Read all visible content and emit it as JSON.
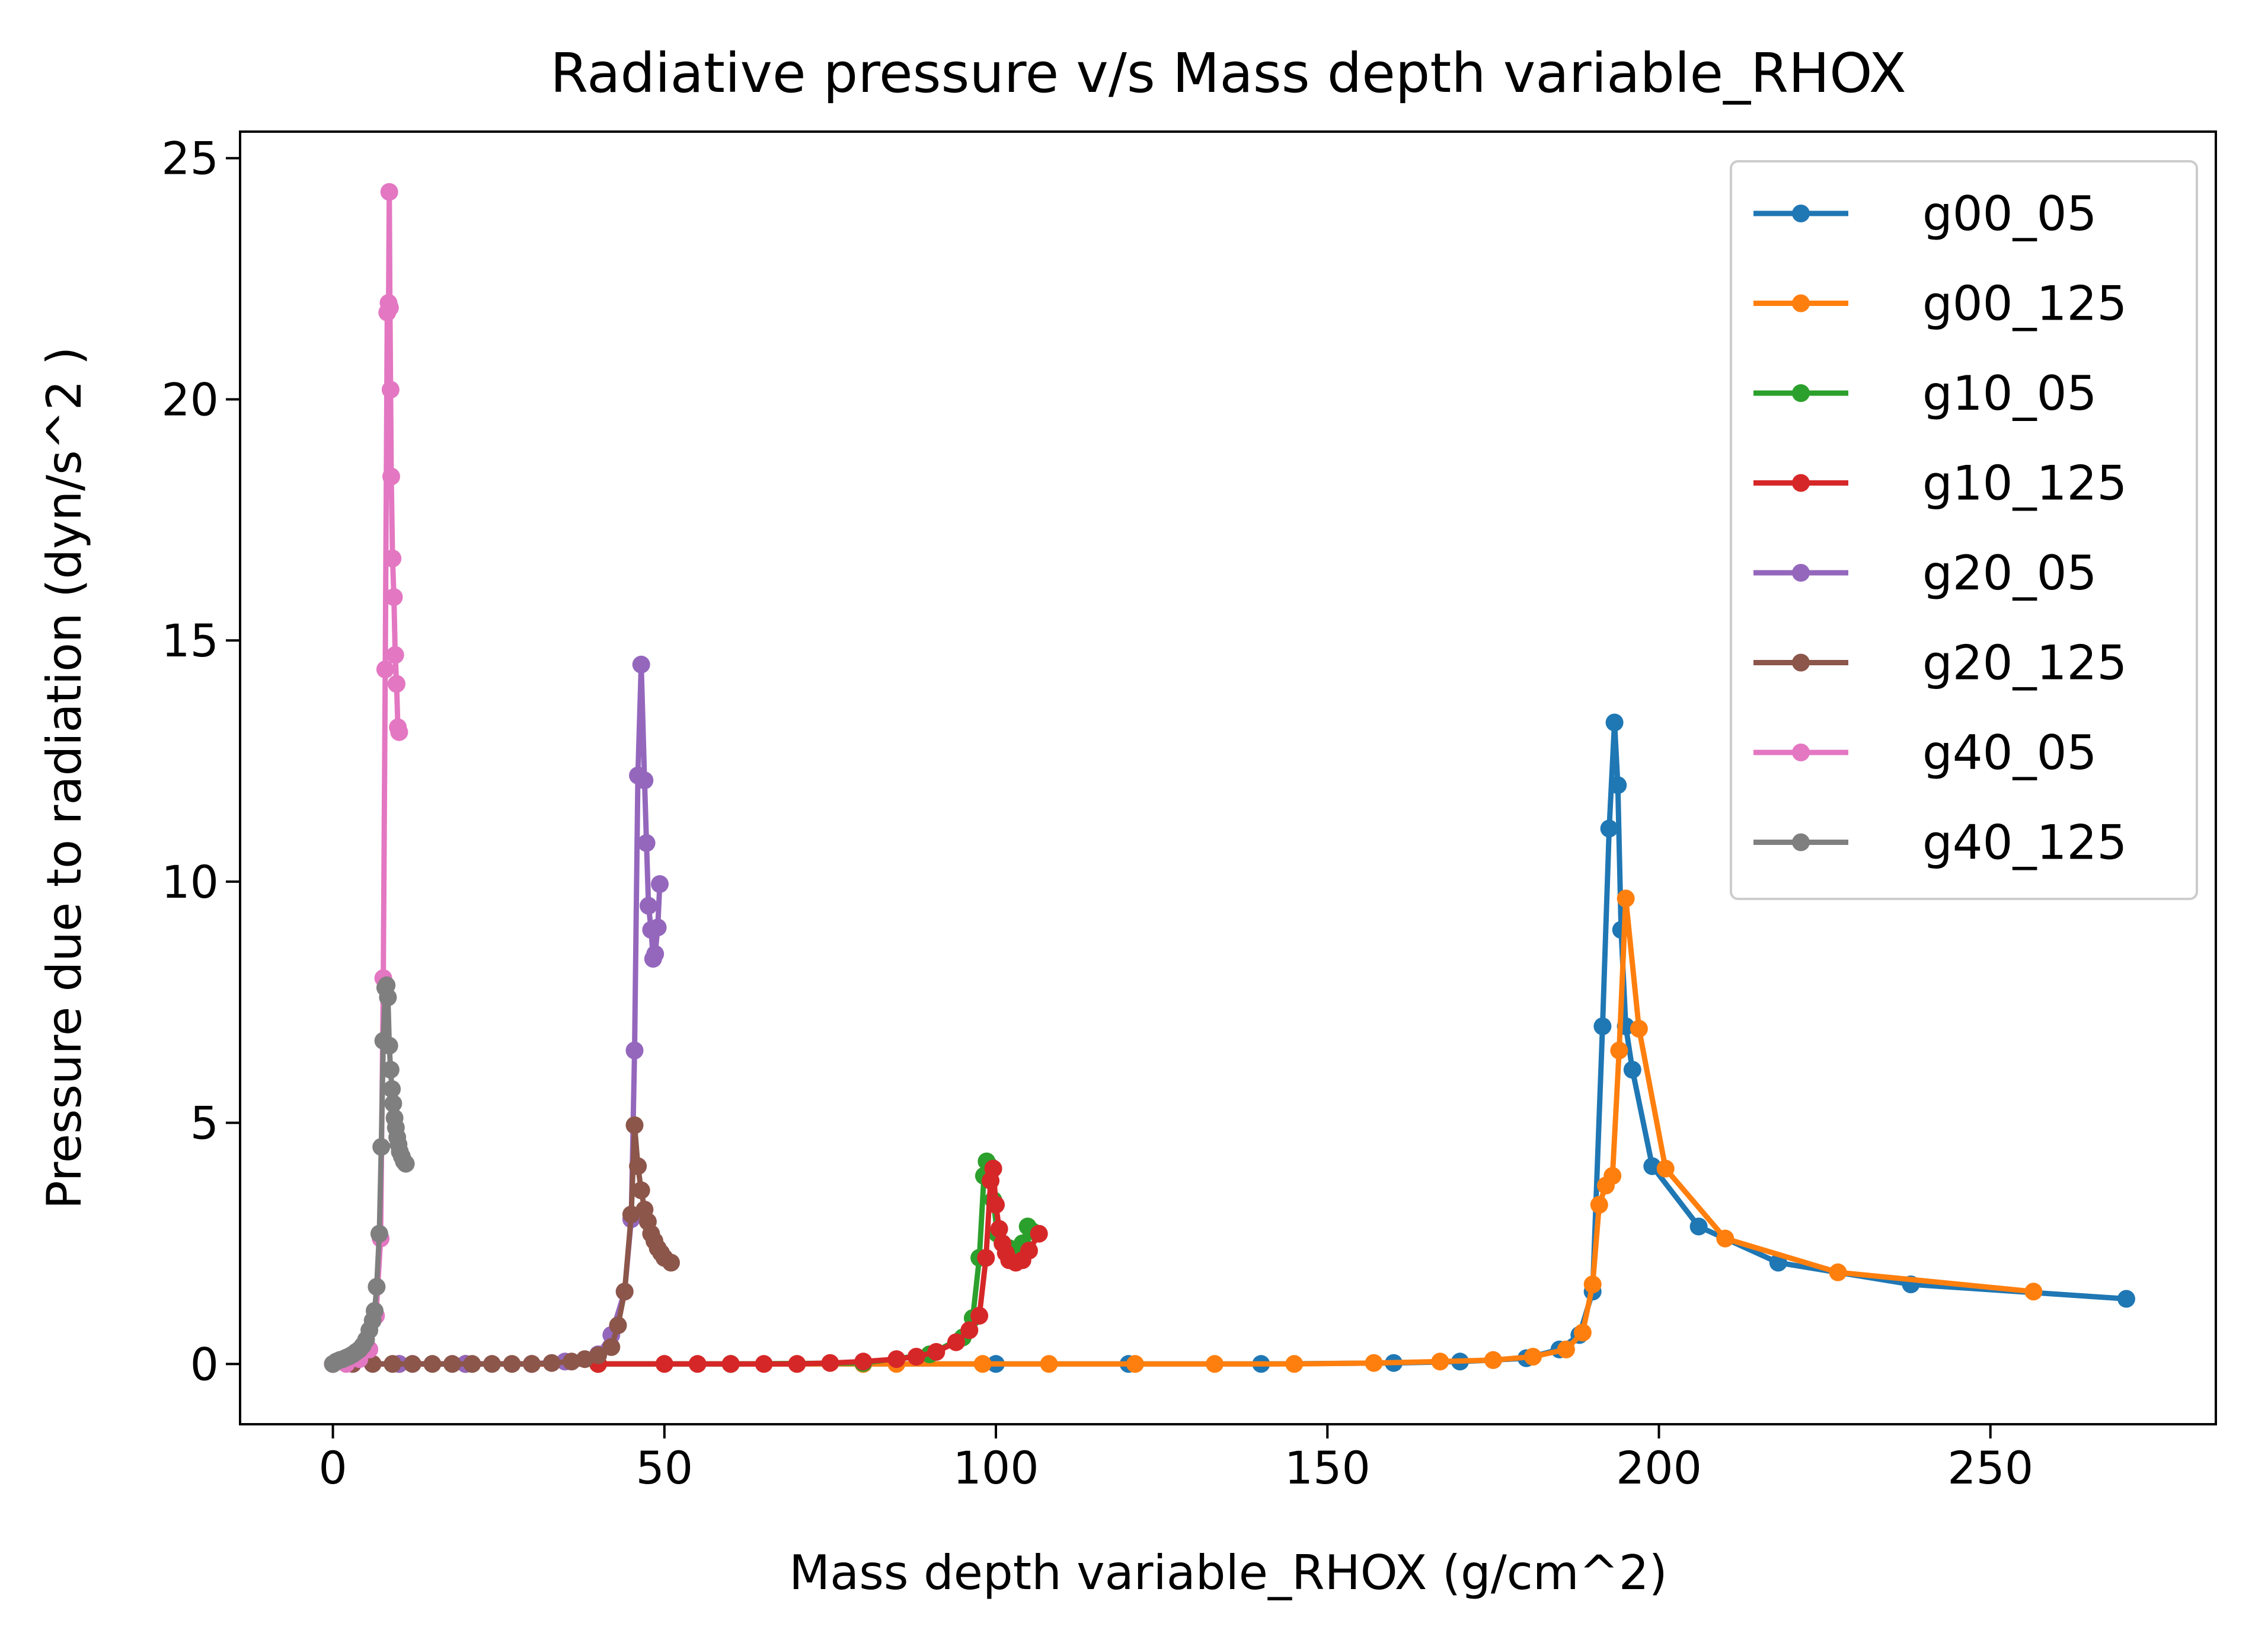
{
  "chart_data": {
    "type": "line",
    "title": "Radiative pressure v/s Mass depth variable_RHOX",
    "xlabel": "Mass depth variable_RHOX (g/cm^2)",
    "ylabel": "Pressure due to radiation (dyn/s^2 )",
    "xlim": [
      -14,
      284
    ],
    "ylim": [
      -1.25,
      25.55
    ],
    "xticks": [
      0,
      50,
      100,
      150,
      200,
      250
    ],
    "yticks": [
      0,
      5,
      10,
      15,
      20,
      25
    ],
    "grid": false,
    "legend_position": "top-right",
    "series": [
      {
        "name": "g00_05",
        "color": "#1f77b4",
        "x": [
          0,
          20,
          40,
          60,
          80,
          100,
          120,
          140,
          160,
          170,
          175,
          180,
          185,
          188,
          190,
          191.5,
          192.5,
          193.3,
          193.8,
          194.3,
          195,
          196,
          199,
          206,
          218,
          238,
          270.5
        ],
        "y": [
          0,
          0,
          0,
          0,
          0,
          0,
          0,
          0,
          0.02,
          0.05,
          0.08,
          0.12,
          0.3,
          0.6,
          1.5,
          7,
          11.1,
          13.3,
          12.0,
          9.0,
          7.0,
          6.1,
          4.1,
          2.85,
          2.1,
          1.65,
          1.35
        ]
      },
      {
        "name": "g00_125",
        "color": "#ff7f0e",
        "x": [
          0,
          10,
          20,
          30,
          40,
          50,
          60,
          70,
          80,
          85,
          98,
          108,
          121,
          133,
          145,
          157,
          167,
          175,
          181,
          186,
          188.5,
          190,
          191,
          192,
          193,
          194,
          195,
          197,
          201,
          210,
          227,
          256.5
        ],
        "y": [
          0,
          0,
          0,
          0,
          0,
          0,
          0,
          0,
          0,
          0,
          0,
          0,
          0,
          0,
          0,
          0.02,
          0.05,
          0.08,
          0.15,
          0.3,
          0.65,
          1.65,
          3.3,
          3.7,
          3.9,
          6.5,
          9.65,
          6.95,
          4.05,
          2.6,
          1.9,
          1.5
        ]
      },
      {
        "name": "g10_05",
        "color": "#2ca02c",
        "x": [
          0,
          20,
          40,
          60,
          80,
          90,
          95,
          96.5,
          97.5,
          98.2,
          98.6,
          99.1,
          99.6,
          100.2,
          101,
          102,
          103,
          104,
          104.8,
          105.5
        ],
        "y": [
          0,
          0,
          0,
          0,
          0.02,
          0.2,
          0.55,
          0.95,
          2.2,
          3.9,
          4.2,
          4.1,
          3.4,
          2.7,
          2.5,
          2.4,
          2.3,
          2.5,
          2.85,
          2.75
        ]
      },
      {
        "name": "g10_125",
        "color": "#d62728",
        "x": [
          0,
          10,
          20,
          30,
          40,
          50,
          55,
          60,
          65,
          70,
          75,
          80,
          85,
          88,
          91,
          94,
          96,
          97.5,
          98.5,
          99.2,
          99.6,
          100,
          100.5,
          101,
          101.5,
          102,
          103,
          104,
          105,
          106.5
        ],
        "y": [
          0,
          0,
          0,
          0,
          0,
          0,
          0,
          0,
          0,
          0,
          0.02,
          0.05,
          0.1,
          0.15,
          0.25,
          0.45,
          0.7,
          1.0,
          2.2,
          3.8,
          4.05,
          3.3,
          2.8,
          2.5,
          2.3,
          2.15,
          2.1,
          2.15,
          2.35,
          2.7
        ]
      },
      {
        "name": "g20_05",
        "color": "#9467bd",
        "x": [
          0,
          10,
          20,
          30,
          35,
          40,
          42,
          44,
          45,
          45.5,
          46,
          46.5,
          47,
          47.3,
          47.6,
          48,
          48.3,
          48.6,
          49,
          49.3
        ],
        "y": [
          0,
          0,
          0,
          0,
          0.05,
          0.2,
          0.6,
          1.5,
          3.0,
          6.5,
          12.2,
          14.5,
          12.1,
          10.8,
          9.5,
          9.0,
          8.4,
          8.5,
          9.05,
          9.95
        ]
      },
      {
        "name": "g20_125",
        "color": "#8c564b",
        "x": [
          0,
          3,
          6,
          9,
          12,
          15,
          18,
          21,
          24,
          27,
          30,
          33,
          36,
          38,
          40,
          42,
          43,
          44,
          45,
          45.5,
          46,
          46.5,
          47,
          47.5,
          48,
          48.5,
          49,
          49.5,
          50,
          51
        ],
        "y": [
          0,
          0,
          0,
          0,
          0,
          0,
          0,
          0,
          0,
          0,
          0,
          0.02,
          0.05,
          0.1,
          0.18,
          0.35,
          0.8,
          1.5,
          3.1,
          4.95,
          4.1,
          3.6,
          3.2,
          2.95,
          2.7,
          2.55,
          2.4,
          2.3,
          2.2,
          2.1
        ]
      },
      {
        "name": "g40_05",
        "color": "#e377c2",
        "x": [
          0,
          2,
          4,
          5.5,
          6.5,
          7.2,
          7.6,
          7.9,
          8.2,
          8.4,
          8.5,
          8.6,
          8.7,
          8.8,
          9.0,
          9.2,
          9.4,
          9.6,
          9.8,
          10.0
        ],
        "y": [
          0,
          0,
          0.1,
          0.3,
          1.0,
          2.6,
          8.0,
          14.4,
          21.8,
          22.0,
          24.3,
          21.9,
          20.2,
          18.4,
          16.7,
          15.9,
          14.7,
          14.1,
          13.2,
          13.1
        ]
      },
      {
        "name": "g40_125",
        "color": "#7f7f7f",
        "x": [
          0,
          0.5,
          1,
          1.5,
          2,
          2.5,
          3,
          3.5,
          4,
          4.5,
          5,
          5.5,
          6,
          6.3,
          6.6,
          7.0,
          7.3,
          7.6,
          7.9,
          8.1,
          8.3,
          8.5,
          8.7,
          8.9,
          9.1,
          9.3,
          9.5,
          9.7,
          9.9,
          10.1,
          10.4,
          10.7,
          11.0
        ],
        "y": [
          0,
          0.05,
          0.08,
          0.1,
          0.13,
          0.16,
          0.2,
          0.25,
          0.3,
          0.38,
          0.5,
          0.7,
          0.9,
          1.1,
          1.6,
          2.7,
          4.5,
          6.7,
          7.8,
          7.85,
          7.6,
          6.6,
          6.1,
          5.7,
          5.4,
          5.1,
          4.9,
          4.7,
          4.55,
          4.4,
          4.3,
          4.2,
          4.15
        ]
      }
    ]
  }
}
